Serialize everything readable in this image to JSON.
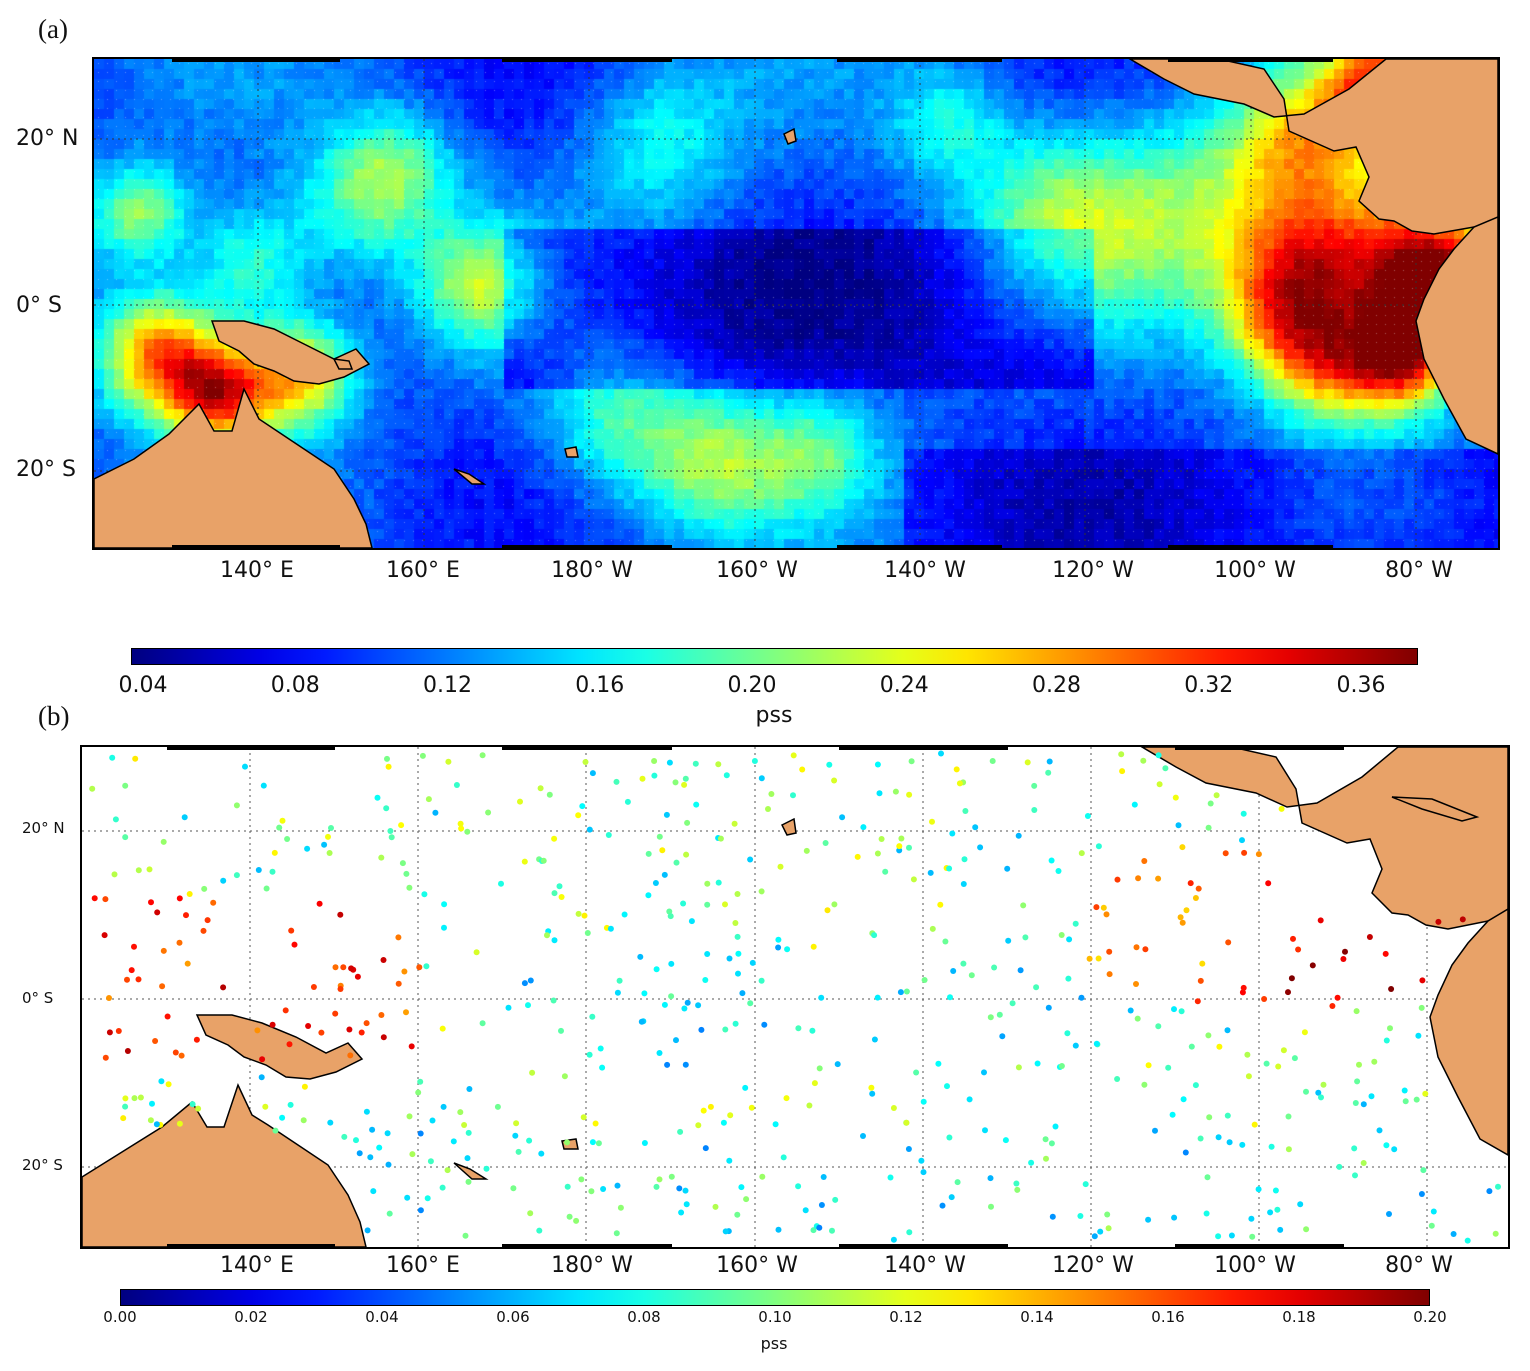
{
  "panels": {
    "a": {
      "label": "(a)"
    },
    "b": {
      "label": "(b)"
    }
  },
  "lon_ticks": [
    "140° E",
    "160° E",
    "180° W",
    "160° W",
    "140° W",
    "120° W",
    "100° W",
    "80° W"
  ],
  "lat_ticks_a": [
    "20° N",
    "0° S",
    "20° S"
  ],
  "lat_ticks_b": [
    "20°  N",
    "0°  S",
    "20°  S"
  ],
  "colorbar_a": {
    "ticks": [
      "0.04",
      "0.08",
      "0.12",
      "0.16",
      "0.20",
      "0.24",
      "0.28",
      "0.32",
      "0.36"
    ],
    "unit": "pss",
    "range": [
      0.03,
      0.38
    ]
  },
  "colorbar_b": {
    "ticks": [
      "0.00",
      "0.02",
      "0.04",
      "0.06",
      "0.08",
      "0.10",
      "0.12",
      "0.14",
      "0.16",
      "0.18",
      "0.20"
    ],
    "unit": "pss",
    "range": [
      0.0,
      0.2
    ]
  },
  "colors": {
    "land": "#e8a268",
    "colormap": "jet"
  },
  "map_extent": {
    "lon": [
      120,
      290
    ],
    "lat": [
      -30,
      30
    ]
  }
}
